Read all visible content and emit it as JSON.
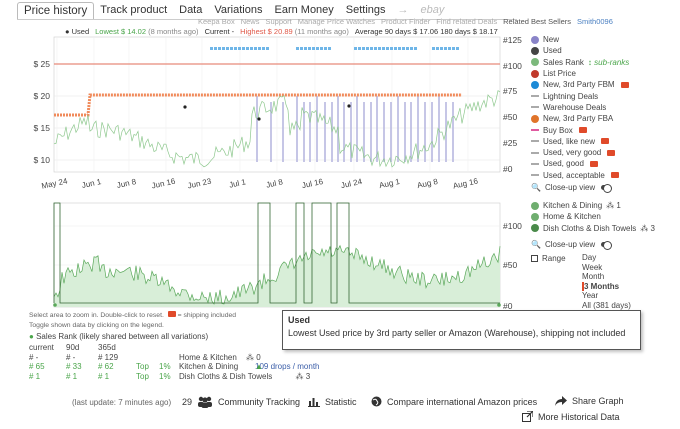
{
  "tabs": [
    {
      "label": "Price history",
      "active": true
    },
    {
      "label": "Track product"
    },
    {
      "label": "Data"
    },
    {
      "label": "Variations"
    },
    {
      "label": "Earn Money"
    },
    {
      "label": "Settings"
    },
    {
      "label": "→"
    },
    {
      "label": "ebay",
      "disabled": true
    }
  ],
  "sublinks": [
    "Keepa Box",
    "News",
    "Support",
    "Manage Price Watches",
    "Product Finder",
    "Find related Deals",
    "Related Best Sellers",
    "Smith0096"
  ],
  "stats": {
    "used_label": "Used",
    "lowest": "Lowest $ 14.02",
    "lowest_when": "(8 months ago)",
    "current": "Current -",
    "highest": "Highest $ 20.89",
    "highest_when": "(11 months ago)",
    "average": "Average 90 days $ 17.06  180 days $ 18.17"
  },
  "main_chart": {
    "y_left": [
      "$ 25",
      "$ 20",
      "$ 15",
      "$ 10"
    ],
    "y_right": [
      "#125",
      "#100",
      "#75",
      "#50",
      "#25",
      "#0"
    ],
    "x_labels": [
      "May 24",
      "Jun 1",
      "Jun 8",
      "Jun 16",
      "Jun 23",
      "Jul 1",
      "Jul 8",
      "Jul 16",
      "Jul 24",
      "Aug 1",
      "Aug 8",
      "Aug 16"
    ]
  },
  "legend_main": [
    {
      "label": "New",
      "color": "#8a84c8",
      "kind": "dot"
    },
    {
      "label": "Used",
      "color": "#444444",
      "kind": "dot"
    },
    {
      "label": "Sales Rank",
      "color": "#7cb97c",
      "kind": "dot",
      "extra": "sub-ranks"
    },
    {
      "label": "List Price",
      "color": "#c0392b",
      "kind": "dot"
    },
    {
      "label": "New, 3rd Party FBM",
      "color": "#1c8ad6",
      "kind": "dot",
      "truck": true
    },
    {
      "label": "Lightning Deals",
      "color": "#aaaaaa",
      "kind": "dash"
    },
    {
      "label": "Warehouse Deals",
      "color": "#aaaaaa",
      "kind": "dash"
    },
    {
      "label": "New, 3rd Party FBA",
      "color": "#e0742a",
      "kind": "dot"
    },
    {
      "label": "Buy Box",
      "color": "#e05aa0",
      "kind": "dash",
      "truck": true
    },
    {
      "label": "Used, like new",
      "color": "#aaaaaa",
      "kind": "dash",
      "truck": true
    },
    {
      "label": "Used, very good",
      "color": "#aaaaaa",
      "kind": "dash",
      "truck": true
    },
    {
      "label": "Used, good",
      "color": "#aaaaaa",
      "kind": "dash",
      "truck": true
    },
    {
      "label": "Used, acceptable",
      "color": "#aaaaaa",
      "kind": "dash",
      "truck": true
    }
  ],
  "closeup_label": "Close-up view",
  "legend_sub": [
    {
      "label": "Kitchen & Dining",
      "color": "#6fae6f",
      "count": "1"
    },
    {
      "label": "Home & Kitchen",
      "color": "#6fae6f"
    },
    {
      "label": "Dish Cloths & Dish Towels",
      "color": "#4a8a4a",
      "count": "3"
    }
  ],
  "sub_chart": {
    "y_right": [
      "#100",
      "#50",
      "#0"
    ]
  },
  "range": {
    "label": "Range",
    "options": [
      "Day",
      "Week",
      "Month",
      "3 Months",
      "Year",
      "All (381 days)"
    ],
    "selected": "3 Months"
  },
  "tooltip": {
    "title": "Used",
    "text": "Lowest Used price by 3rd party seller or Amazon (Warehouse), shipping not included"
  },
  "help": {
    "line1": "Select area to zoom in. Double-click to reset.",
    "shipping": "= shipping included",
    "line2": "Toggle shown data by clicking on the legend."
  },
  "sales_rank": {
    "title": "Sales Rank",
    "subtitle": "(likely shared between all variations)",
    "headers": [
      "current",
      "90d",
      "365d"
    ],
    "rows": [
      {
        "current": "# -",
        "d90": "# -",
        "d365": "# 129",
        "top": "",
        "pct": "",
        "category": "Home & Kitchen",
        "count": "0",
        "drops": ""
      },
      {
        "current": "# 65",
        "d90": "# 33",
        "d365": "# 62",
        "top": "Top",
        "pct": "1%",
        "category": "Kitchen & Dining",
        "count": "",
        "drops": "109 drops / month"
      },
      {
        "current": "# 1",
        "d90": "# 1",
        "d365": "# 1",
        "top": "Top",
        "pct": "1%",
        "category": "Dish Cloths & Dish Towels",
        "count": "3",
        "drops": ""
      }
    ]
  },
  "footer": {
    "last_update": "(last update: 7 minutes ago)",
    "tracking_count": "29",
    "community": "Community Tracking",
    "statistic": "Statistic",
    "compare": "Compare international Amazon prices",
    "share": "Share Graph",
    "more": "More Historical Data"
  }
}
